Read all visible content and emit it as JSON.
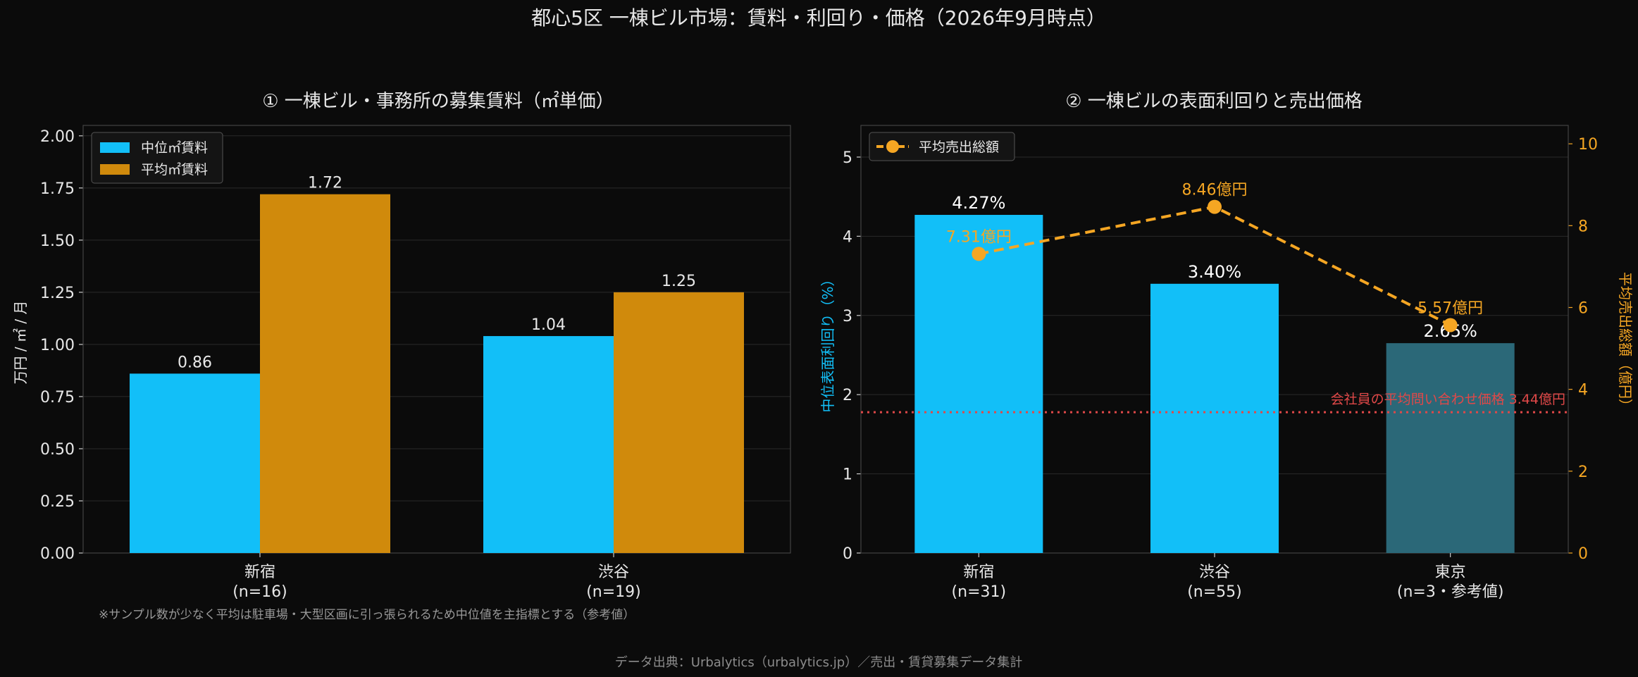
{
  "suptitle": "都心5区 一棟ビル市場：賃料・利回り・価格（2026年9月時点）",
  "source_note": "データ出典：Urbalytics（urbalytics.jp）／売出・賃貸募集データ集計",
  "colors": {
    "background": "#0b0b0b",
    "plot_bg": "#0b0b0b",
    "text": "#e8e8e8",
    "muted": "#9a9a9a",
    "grid": "#2a2a2a",
    "cyan": "#12bff8",
    "orange": "#d08a0c",
    "teal": "#2b6878",
    "red": "#e04848",
    "line_orange": "#f5a623"
  },
  "chart_data": [
    {
      "type": "bar",
      "title": "① 一棟ビル・事務所の募集賃料（㎡単価）",
      "ylabel": "万円 / ㎡ / 月",
      "categories": [
        "新宿\n(n=16)",
        "渋谷\n(n=19)"
      ],
      "series": [
        {
          "name": "中位㎡賃料",
          "values": [
            0.86,
            1.04
          ],
          "color": "#12bff8"
        },
        {
          "name": "平均㎡賃料",
          "values": [
            1.72,
            1.25
          ],
          "color": "#d08a0c"
        }
      ],
      "data_labels": [
        [
          "0.86",
          "1.04"
        ],
        [
          "1.72",
          "1.25"
        ]
      ],
      "ylim": [
        0,
        2.05
      ],
      "yticks": [
        "0.00",
        "0.25",
        "0.50",
        "0.75",
        "1.00",
        "1.25",
        "1.50",
        "1.75",
        "2.00"
      ],
      "ytick_values": [
        0,
        0.25,
        0.5,
        0.75,
        1.0,
        1.25,
        1.5,
        1.75,
        2.0
      ],
      "legend": "top-left",
      "grid": true,
      "footnote": "※サンプル数が少なく平均は駐車場・大型区画に引っ張られるため中位値を主指標とする（参考値）"
    },
    {
      "type": "bar+line",
      "title": "② 一棟ビルの表面利回りと売出価格",
      "ylabel": "中位表面利回り（%）",
      "y2label": "平均売出総額（億円）",
      "categories": [
        "新宿\n(n=31)",
        "渋谷\n(n=55)",
        "東京\n(n=3・参考値)"
      ],
      "bars": {
        "values": [
          4.27,
          3.4,
          2.65
        ],
        "labels": [
          "4.27%",
          "3.40%",
          "2.65%"
        ],
        "colors": [
          "#12bff8",
          "#12bff8",
          "#2b6878"
        ]
      },
      "line": {
        "name": "平均売出総額",
        "values": [
          7.31,
          8.46,
          5.57
        ],
        "labels": [
          "7.31億円",
          "8.46億円",
          "5.57億円"
        ]
      },
      "reference_line": {
        "value": 3.44,
        "label": "会社員の平均問い合わせ価格 3.44億円"
      },
      "ylim": [
        0,
        5.4
      ],
      "yticks": [
        "0",
        "1",
        "2",
        "3",
        "4",
        "5"
      ],
      "ytick_values": [
        0,
        1,
        2,
        3,
        4,
        5
      ],
      "y2lim": [
        0,
        10.45
      ],
      "y2ticks": [
        "0",
        "2",
        "4",
        "6",
        "8",
        "10"
      ],
      "y2tick_values": [
        0,
        2,
        4,
        6,
        8,
        10
      ],
      "legend": "top-left",
      "grid": true
    }
  ]
}
